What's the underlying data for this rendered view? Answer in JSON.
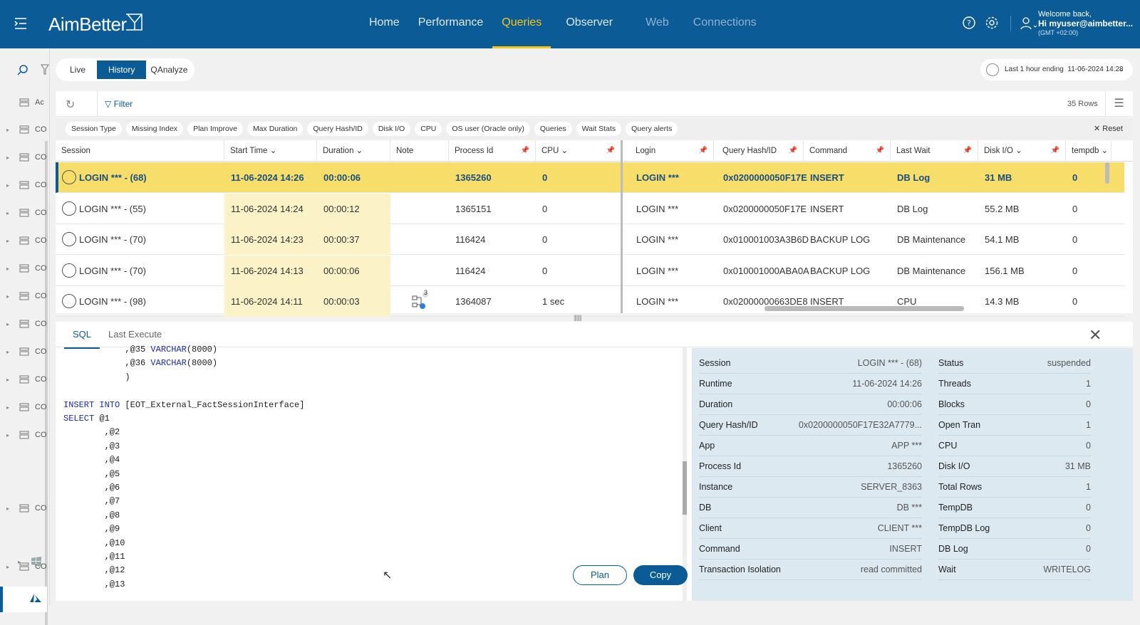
{
  "app": {
    "logo": "AimBetter"
  },
  "nav": [
    {
      "label": "Home"
    },
    {
      "label": "Performance"
    },
    {
      "label": "Queries"
    },
    {
      "label": "Observer"
    },
    {
      "label": "Web"
    },
    {
      "label": "Connections"
    }
  ],
  "user": {
    "welcome": "Welcome back,",
    "name": "Hi myuser@aimbetter...",
    "tz": "(GMT +02:00)"
  },
  "sidebar": {
    "items": [
      "Ac",
      "CO",
      "CO",
      "CO",
      "CO",
      "CO",
      "CO",
      "CO",
      "CO",
      "CO",
      "CO",
      "CO",
      "CO",
      "CO",
      "CO"
    ]
  },
  "modes": {
    "live": "Live",
    "history": "History",
    "qanalyze": "QAnalyze"
  },
  "time": {
    "label": "Last 1 hour ending",
    "value": "11-06-2024 14:28"
  },
  "toolbar": {
    "filter": "Filter",
    "rows": "35 Rows"
  },
  "chips": [
    "Session Type",
    "Missing Index",
    "Plan Improve",
    "Max Duration",
    "Query Hash/ID",
    "Disk I/O",
    "CPU",
    "OS user (Oracle only)",
    "Queries",
    "Wait Stats",
    "Query alerts"
  ],
  "reset": "Reset",
  "columns": {
    "session": "Session",
    "start": "Start Time",
    "duration": "Duration",
    "note": "Note",
    "pid": "Process Id",
    "cpu": "CPU",
    "login": "Login",
    "hash": "Query Hash/ID",
    "command": "Command",
    "lastwait": "Last Wait",
    "disk": "Disk I/O",
    "tempdb": "tempdb"
  },
  "rows": [
    {
      "session": "LOGIN *** - (68)",
      "start": "11-06-2024 14:26",
      "duration": "00:00:06",
      "note": "",
      "pid": "1365260",
      "cpu": "0",
      "login": "LOGIN ***",
      "hash": "0x0200000050F17E",
      "command": "INSERT",
      "lastwait": "DB Log",
      "disk": "31 MB",
      "tempdb": "0"
    },
    {
      "session": "LOGIN *** - (55)",
      "start": "11-06-2024 14:24",
      "duration": "00:00:12",
      "note": "",
      "pid": "1365151",
      "cpu": "0",
      "login": "LOGIN ***",
      "hash": "0x0200000050F17E",
      "command": "INSERT",
      "lastwait": "DB Log",
      "disk": "55.2 MB",
      "tempdb": "0"
    },
    {
      "session": "LOGIN *** - (70)",
      "start": "11-06-2024 14:23",
      "duration": "00:00:37",
      "note": "",
      "pid": "116424",
      "cpu": "0",
      "login": "LOGIN ***",
      "hash": "0x010001003A3B6D",
      "command": "BACKUP LOG",
      "lastwait": "DB Maintenance",
      "disk": "54.1 MB",
      "tempdb": "0"
    },
    {
      "session": "LOGIN *** - (70)",
      "start": "11-06-2024 14:13",
      "duration": "00:00:06",
      "note": "",
      "pid": "116424",
      "cpu": "0",
      "login": "LOGIN ***",
      "hash": "0x010001000ABA0A",
      "command": "BACKUP LOG",
      "lastwait": "DB Maintenance",
      "disk": "156.1 MB",
      "tempdb": "0"
    },
    {
      "session": "LOGIN *** - (98)",
      "start": "11-06-2024 14:11",
      "duration": "00:00:03",
      "note": "3",
      "pid": "1364087",
      "cpu": "1 sec",
      "login": "LOGIN ***",
      "hash": "0x02000000663DE8",
      "command": "INSERT",
      "lastwait": "CPU",
      "disk": "14.3 MB",
      "tempdb": "0"
    }
  ],
  "detail": {
    "tabs": {
      "sql": "SQL",
      "last": "Last Execute"
    },
    "code": [
      "            ,@35 VARCHAR(8000)",
      "            ,@36 VARCHAR(8000)",
      "            )",
      "",
      "INSERT INTO [EOT_External_FactSessionInterface]",
      "SELECT @1",
      "        ,@2",
      "        ,@3",
      "        ,@4",
      "        ,@5",
      "        ,@6",
      "        ,@7",
      "        ,@8",
      "        ,@9",
      "        ,@10",
      "        ,@11",
      "        ,@12",
      "        ,@13"
    ],
    "plan": "Plan",
    "copy": "Copy",
    "props_left": [
      {
        "k": "Session",
        "v": "LOGIN *** - (68)"
      },
      {
        "k": "Runtime",
        "v": "11-06-2024 14:26"
      },
      {
        "k": "Duration",
        "v": "00:00:06"
      },
      {
        "k": "Query Hash/ID",
        "v": "0x0200000050F17E32A7779..."
      },
      {
        "k": "App",
        "v": "APP ***"
      },
      {
        "k": "Process Id",
        "v": "1365260"
      },
      {
        "k": "Instance",
        "v": "SERVER_8363"
      },
      {
        "k": "DB",
        "v": "DB ***"
      },
      {
        "k": "Client",
        "v": "CLIENT ***"
      },
      {
        "k": "Command",
        "v": "INSERT"
      },
      {
        "k": "Transaction Isolation",
        "v": "read committed"
      }
    ],
    "props_right": [
      {
        "k": "Status",
        "v": "suspended"
      },
      {
        "k": "Threads",
        "v": "1"
      },
      {
        "k": "Blocks",
        "v": "0"
      },
      {
        "k": "Open Tran",
        "v": "1"
      },
      {
        "k": "CPU",
        "v": "0"
      },
      {
        "k": "Disk I/O",
        "v": "31 MB"
      },
      {
        "k": "Total Rows",
        "v": "1"
      },
      {
        "k": "TempDB",
        "v": "0"
      },
      {
        "k": "TempDB Log",
        "v": "0"
      },
      {
        "k": "DB Log",
        "v": "0"
      },
      {
        "k": "Wait",
        "v": "WRITELOG"
      }
    ]
  }
}
